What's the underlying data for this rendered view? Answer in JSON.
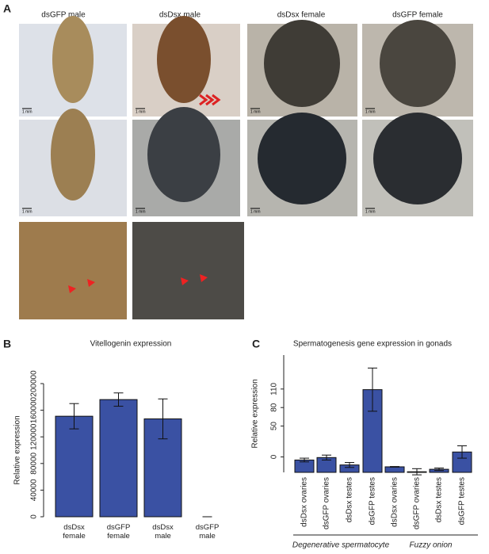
{
  "panel_a": {
    "label": "A",
    "columns": [
      "dsGFP male",
      "dsDsx male",
      "dsDsx female",
      "dsGFP female"
    ],
    "scale_label": "1 mm"
  },
  "chart_data": [
    {
      "type": "bar",
      "panel": "B",
      "title": "Vitellogenin expression",
      "ylabel": "Relative expression",
      "categories": [
        "dsDsx female",
        "dsGFP female",
        "dsDsx male",
        "dsGFP male"
      ],
      "values": [
        151000,
        176000,
        147000,
        0
      ],
      "errors": [
        19000,
        10000,
        30000,
        0
      ],
      "color": "#3a51a3",
      "ylim": [
        0,
        200000
      ],
      "yticks": [
        0,
        40000,
        80000,
        120000,
        160000,
        200000
      ]
    },
    {
      "type": "bar",
      "panel": "C",
      "title": "Spermatogenesis gene expression in gonads",
      "ylabel": "Relative expression",
      "categories": [
        "dsDsx ovaries",
        "dsGFP ovaries",
        "dsDsx testes",
        "dsGFP testes",
        "dsDsx ovaries",
        "dsGFP ovaries",
        "dsDsx testes",
        "dsGFP testes"
      ],
      "groups": [
        "Degenerative spermatocyte",
        "Fuzzy onion"
      ],
      "values": [
        -5,
        -1,
        -13,
        109,
        -16,
        -24,
        -20,
        8
      ],
      "errors": [
        3,
        4,
        4,
        35,
        0.5,
        5,
        2,
        10
      ],
      "color": "#3a51a3",
      "ylim": [
        -25,
        165
      ],
      "yticks": [
        0,
        50,
        80,
        110
      ]
    }
  ]
}
